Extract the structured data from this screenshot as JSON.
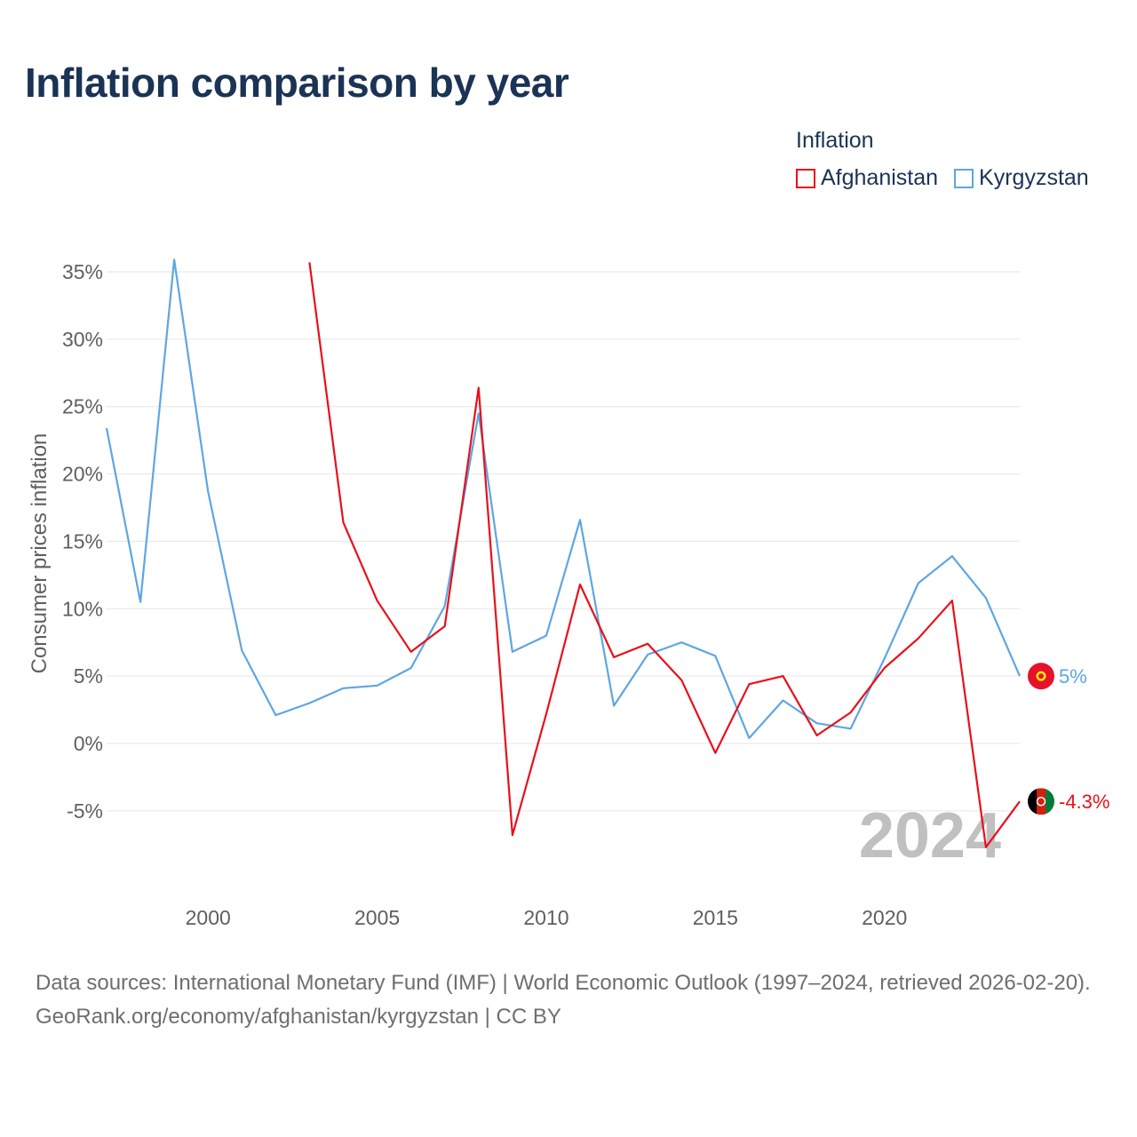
{
  "title": "Inflation comparison by year",
  "legend": {
    "title": "Inflation",
    "items": [
      {
        "name": "Afghanistan",
        "color": "#e8101a"
      },
      {
        "name": "Kyrgyzstan",
        "color": "#5ea6e3"
      }
    ]
  },
  "footer": {
    "source": "Data sources: International Monetary Fund (IMF) | World Economic Outlook (1997–2024, retrieved 2026-02-20).",
    "credit": "GeoRank.org/economy/afghanistan/kyrgyzstan | CC BY"
  },
  "chart_data": {
    "type": "line",
    "title": "Inflation comparison by year",
    "xlabel": "",
    "ylabel": "Consumer prices inflation",
    "xlim": [
      1997,
      2024
    ],
    "ylim": [
      -10,
      37
    ],
    "xticks": [
      2000,
      2005,
      2010,
      2015,
      2020
    ],
    "xtick_labels": [
      "2000",
      "2005",
      "2010",
      "2015",
      "2020"
    ],
    "yticks": [
      -5,
      0,
      5,
      10,
      15,
      20,
      25,
      30,
      35
    ],
    "ytick_labels": [
      "-5%",
      "0%",
      "5%",
      "10%",
      "15%",
      "20%",
      "25%",
      "30%",
      "35%"
    ],
    "current_year_label": "2024",
    "series": [
      {
        "name": "Afghanistan",
        "color": "#e8101a",
        "end_label": "-4.3%",
        "flag_icon": "afghanistan-flag-icon",
        "points": [
          [
            2003,
            35.7
          ],
          [
            2004,
            16.4
          ],
          [
            2005,
            10.6
          ],
          [
            2006,
            6.8
          ],
          [
            2007,
            8.7
          ],
          [
            2008,
            26.4
          ],
          [
            2009,
            -6.8
          ],
          [
            2010,
            2.2
          ],
          [
            2011,
            11.8
          ],
          [
            2012,
            6.4
          ],
          [
            2013,
            7.4
          ],
          [
            2014,
            4.7
          ],
          [
            2015,
            -0.7
          ],
          [
            2016,
            4.4
          ],
          [
            2017,
            5.0
          ],
          [
            2018,
            0.6
          ],
          [
            2019,
            2.3
          ],
          [
            2020,
            5.6
          ],
          [
            2021,
            7.8
          ],
          [
            2022,
            10.6
          ],
          [
            2023,
            -7.7
          ],
          [
            2024,
            -4.3
          ]
        ]
      },
      {
        "name": "Kyrgyzstan",
        "color": "#5ea6e3",
        "end_label": "5%",
        "flag_icon": "kyrgyzstan-flag-icon",
        "points": [
          [
            1997,
            23.4
          ],
          [
            1998,
            10.5
          ],
          [
            1999,
            35.9
          ],
          [
            2000,
            18.7
          ],
          [
            2001,
            6.9
          ],
          [
            2002,
            2.1
          ],
          [
            2003,
            3.0
          ],
          [
            2004,
            4.1
          ],
          [
            2005,
            4.3
          ],
          [
            2006,
            5.6
          ],
          [
            2007,
            10.2
          ],
          [
            2008,
            24.5
          ],
          [
            2009,
            6.8
          ],
          [
            2010,
            8.0
          ],
          [
            2011,
            16.6
          ],
          [
            2012,
            2.8
          ],
          [
            2013,
            6.6
          ],
          [
            2014,
            7.5
          ],
          [
            2015,
            6.5
          ],
          [
            2016,
            0.4
          ],
          [
            2017,
            3.2
          ],
          [
            2018,
            1.5
          ],
          [
            2019,
            1.1
          ],
          [
            2020,
            6.3
          ],
          [
            2021,
            11.9
          ],
          [
            2022,
            13.9
          ],
          [
            2023,
            10.8
          ],
          [
            2024,
            5.0
          ]
        ]
      }
    ]
  }
}
